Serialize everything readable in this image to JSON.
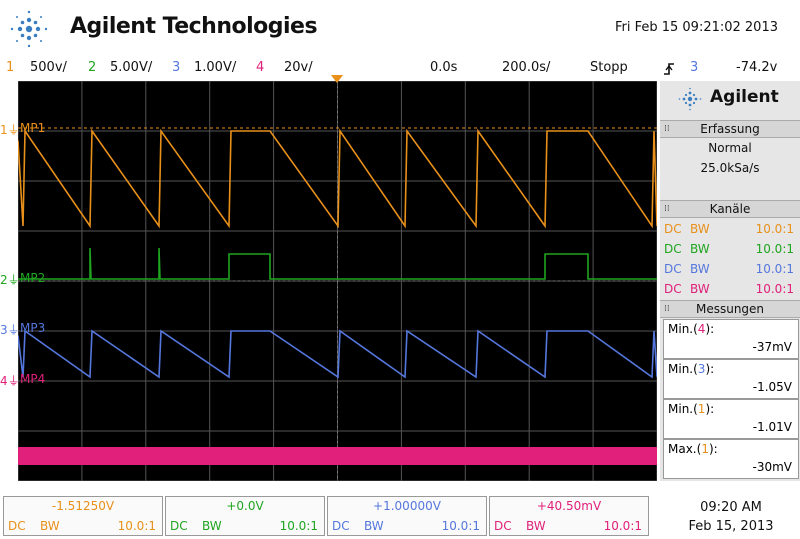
{
  "header": {
    "brand": "Agilent Technologies",
    "datetime": "Fri Feb 15 09:21:02 2013"
  },
  "channel_bar": {
    "ch1": {
      "num": "1",
      "scale": "500v/"
    },
    "ch2": {
      "num": "2",
      "scale": "5.00V/"
    },
    "ch3": {
      "num": "3",
      "scale": "1.00V/"
    },
    "ch4": {
      "num": "4",
      "scale": "20v/"
    },
    "delay": "0.0s",
    "timebase": "200.0s/",
    "run_state": "Stopp",
    "trigger_channel": "3",
    "trigger_level": "-74.2v"
  },
  "colors": {
    "ch1": "#e8901a",
    "ch2": "#1fa51f",
    "ch3": "#5577dd",
    "ch4": "#e0207a"
  },
  "screen": {
    "labels": [
      {
        "id": "mp1",
        "text": "MP1",
        "num": "1"
      },
      {
        "id": "mp2",
        "text": "MP2",
        "num": "2"
      },
      {
        "id": "mp3",
        "text": "MP3",
        "num": "3"
      },
      {
        "id": "mp4",
        "text": "MP4",
        "num": "4"
      }
    ]
  },
  "panel": {
    "logo": "Agilent",
    "acq_title": "Erfassung",
    "acq_mode": "Normal",
    "acq_rate": "25.0kSa/s",
    "kanaele_title": "Kanäle",
    "kanaele": [
      {
        "coupling": "DC",
        "bw": "BW",
        "probe": "10.0:1"
      },
      {
        "coupling": "DC",
        "bw": "BW",
        "probe": "10.0:1"
      },
      {
        "coupling": "DC",
        "bw": "BW",
        "probe": "10.0:1"
      },
      {
        "coupling": "DC",
        "bw": "BW",
        "probe": "10.0:1"
      }
    ],
    "mess_title": "Messungen",
    "messungen": [
      {
        "label": "Min.",
        "ch": "4",
        "value": "-37mV"
      },
      {
        "label": "Min.",
        "ch": "3",
        "value": "-1.05V"
      },
      {
        "label": "Min.",
        "ch": "1",
        "value": "-1.01V"
      },
      {
        "label": "Max.",
        "ch": "1",
        "value": "-30mV"
      }
    ]
  },
  "footer": {
    "channels": [
      {
        "offset": "-1.51250V",
        "coupling": "DC",
        "bw": "BW",
        "probe": "10.0:1"
      },
      {
        "offset": "+0.0V",
        "coupling": "DC",
        "bw": "BW",
        "probe": "10.0:1"
      },
      {
        "offset": "+1.00000V",
        "coupling": "DC",
        "bw": "BW",
        "probe": "10.0:1"
      },
      {
        "offset": "+40.50mV",
        "coupling": "DC",
        "bw": "BW",
        "probe": "10.0:1"
      }
    ],
    "time": "09:20 AM",
    "date": "Feb 15, 2013"
  }
}
